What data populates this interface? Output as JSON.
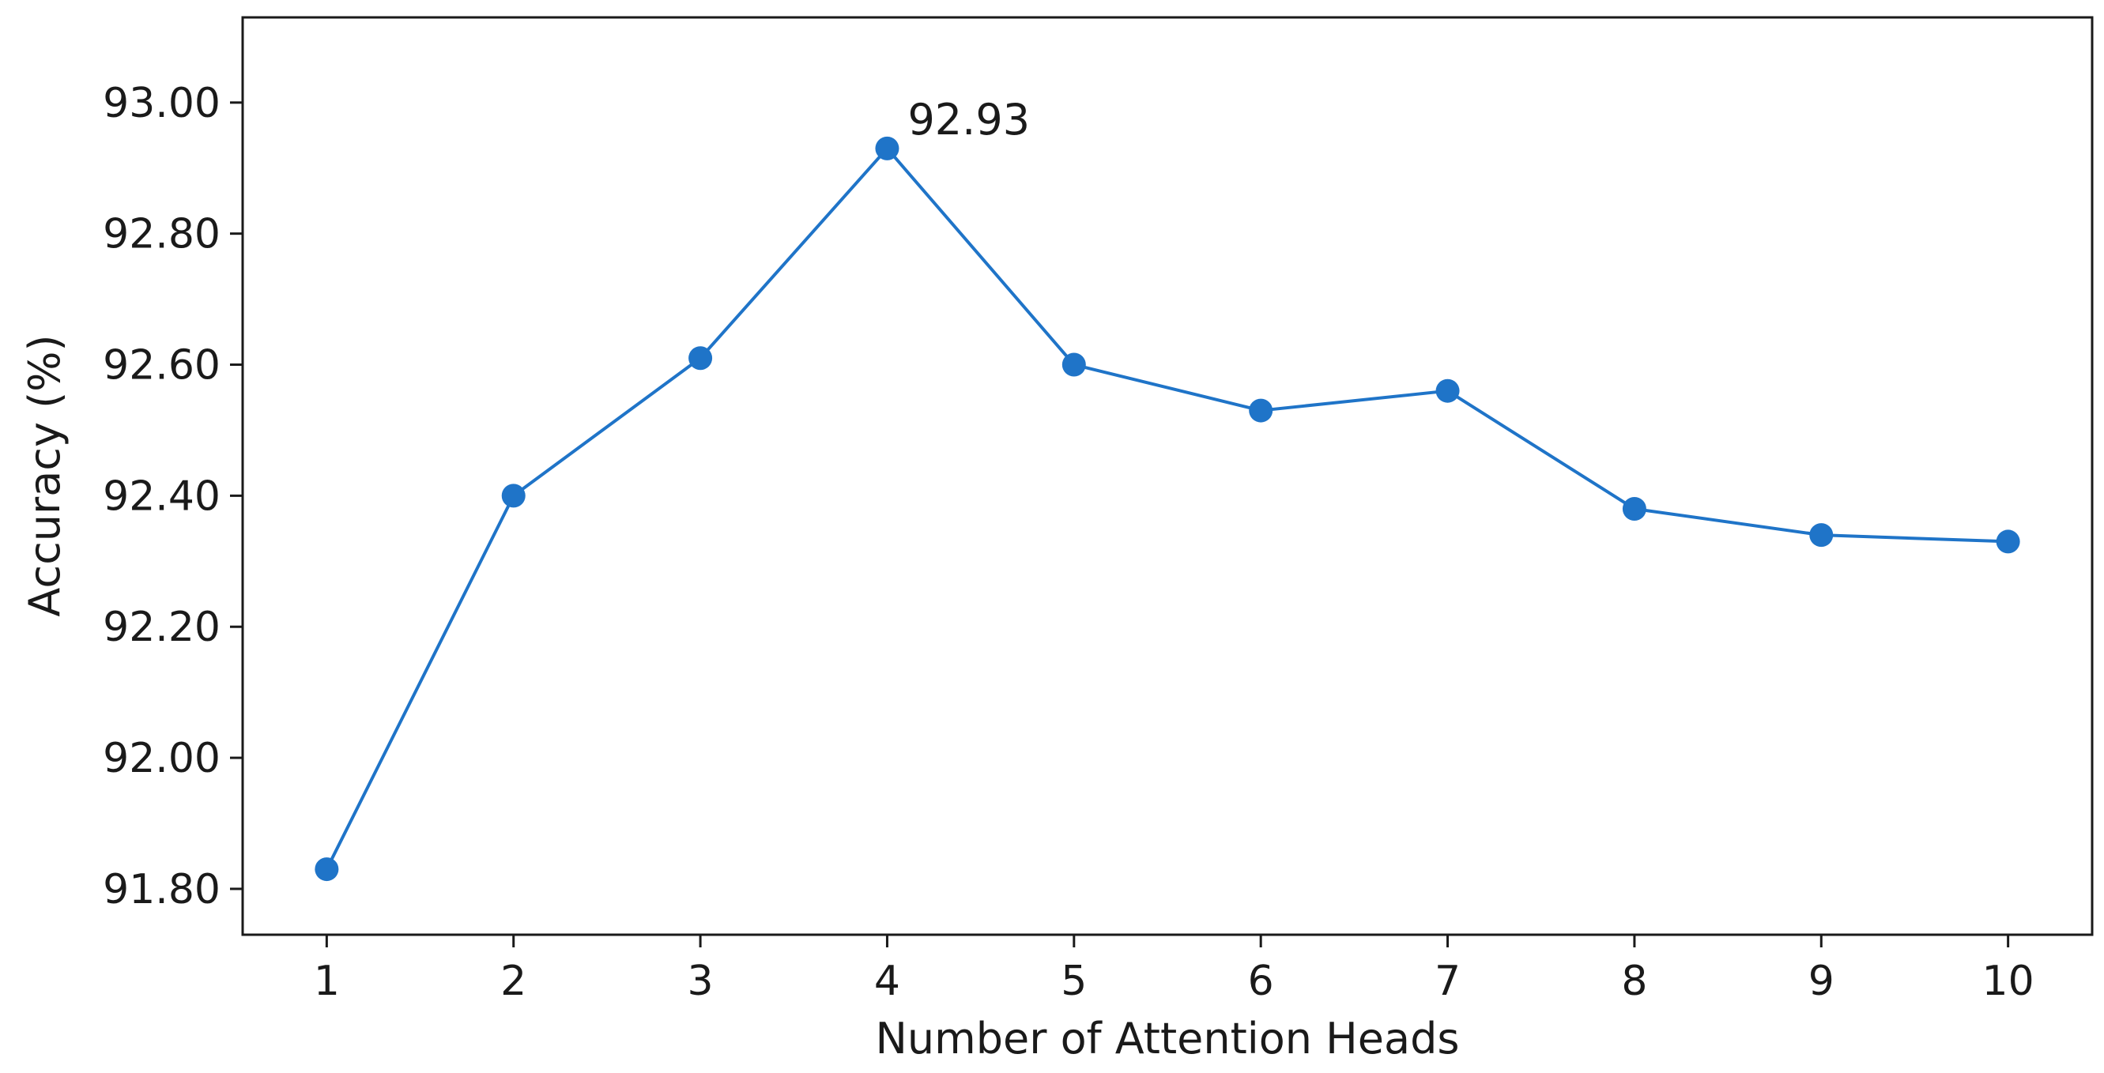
{
  "chart_data": {
    "type": "line",
    "title": "",
    "xlabel": "Number of Attention Heads",
    "ylabel": "Accuracy (%)",
    "x": [
      1,
      2,
      3,
      4,
      5,
      6,
      7,
      8,
      9,
      10
    ],
    "x_tick_labels": [
      "1",
      "2",
      "3",
      "4",
      "5",
      "6",
      "7",
      "8",
      "9",
      "10"
    ],
    "y_ticks": [
      91.8,
      92.0,
      92.2,
      92.4,
      92.6,
      92.8,
      93.0
    ],
    "y_tick_labels": [
      "91.80",
      "92.00",
      "92.20",
      "92.40",
      "92.60",
      "92.80",
      "93.00"
    ],
    "ylim": [
      91.73,
      93.13
    ],
    "xlim": [
      0.55,
      10.45
    ],
    "series": [
      {
        "values": [
          91.83,
          92.4,
          92.61,
          92.93,
          92.6,
          92.53,
          92.56,
          92.38,
          92.34,
          92.33
        ],
        "color": "#1f74c8",
        "marker": "circle"
      }
    ],
    "annotations": [
      {
        "x": 4,
        "y": 92.93,
        "text": "92.93"
      }
    ],
    "grid": false,
    "legend": "none"
  }
}
